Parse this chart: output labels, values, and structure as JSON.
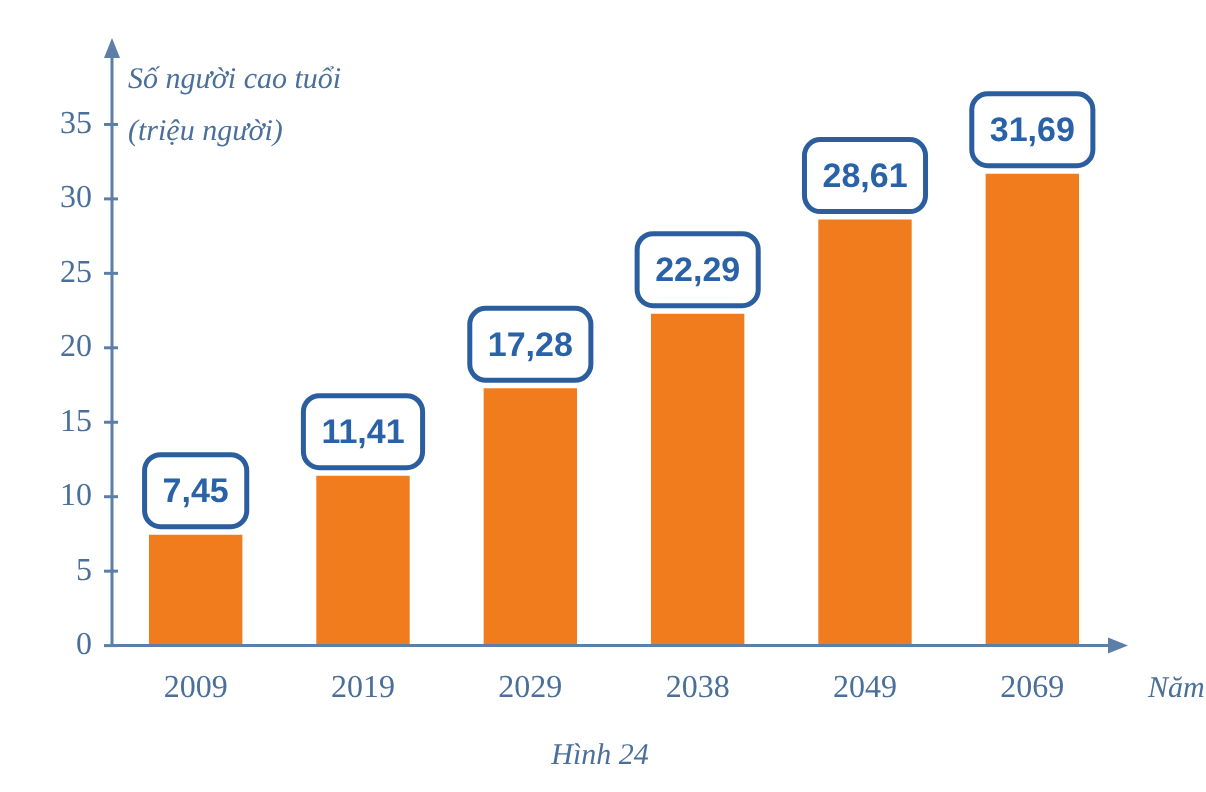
{
  "chart_data": {
    "type": "bar",
    "ylabel": "Số người cao tuổi (triệu người)",
    "xlabel": "Năm",
    "categories": [
      "2009",
      "2019",
      "2029",
      "2038",
      "2049",
      "2069"
    ],
    "values": [
      7.45,
      11.41,
      17.28,
      22.29,
      28.61,
      31.69
    ],
    "value_labels": [
      "7,45",
      "11,41",
      "17,28",
      "22,29",
      "28,61",
      "31,69"
    ],
    "color": "#f07c1e",
    "ylim": [
      0,
      40
    ],
    "yticks": [
      0,
      5,
      10,
      15,
      20,
      25,
      30,
      35
    ],
    "grid": false,
    "legend": false,
    "annotations": [
      "Hình 24"
    ]
  }
}
